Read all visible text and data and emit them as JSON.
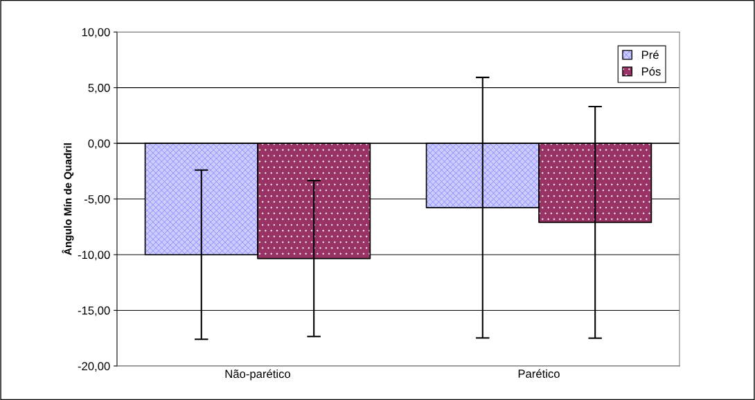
{
  "chart_data": {
    "type": "bar",
    "ylabel": "Ângulo Mín de Quadril",
    "categories": [
      "Não-parético",
      "Parético"
    ],
    "series": [
      {
        "name": "Pré",
        "color": "#ccccff",
        "values": [
          -10.0,
          -5.78
        ],
        "errors": [
          7.6,
          11.7
        ]
      },
      {
        "name": "Pós",
        "color": "#993366",
        "values": [
          -10.35,
          -7.1
        ],
        "errors": [
          7.0,
          10.4
        ]
      }
    ],
    "ylim": [
      -20,
      10
    ],
    "yticks": [
      {
        "value": -20,
        "label": "-20,00"
      },
      {
        "value": -15,
        "label": "-15,00"
      },
      {
        "value": -10,
        "label": "-10,00"
      },
      {
        "value": -5,
        "label": "-5,00"
      },
      {
        "value": 0,
        "label": "0,00"
      },
      {
        "value": 5,
        "label": "5,00"
      },
      {
        "value": 10,
        "label": "10,00"
      }
    ],
    "grid": "y",
    "legend": "top right"
  }
}
